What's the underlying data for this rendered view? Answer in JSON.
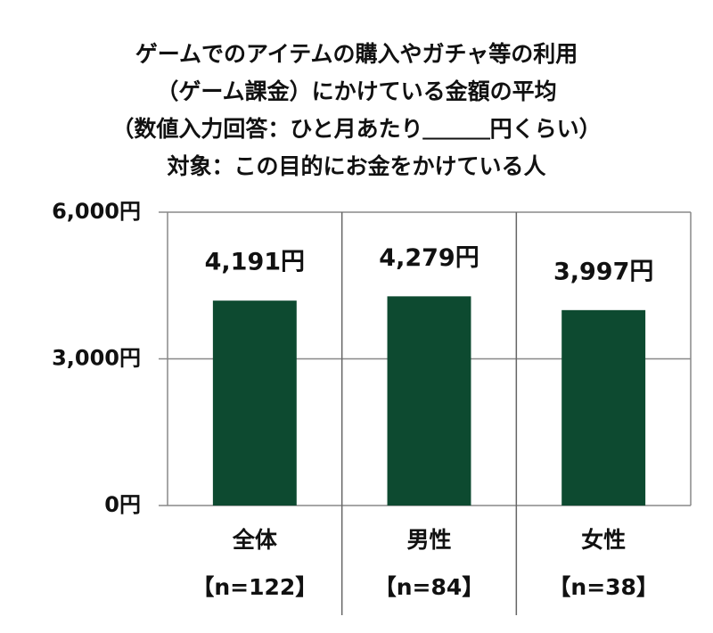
{
  "chart_data": {
    "type": "bar",
    "title": [
      "ゲームでのアイテムの購入やガチャ等の利用",
      "（ゲーム課金）にかけている金額の平均",
      "（数値入力回答：ひと月あたり＿＿＿円くらい）",
      "対象：この目的にお金をかけている人"
    ],
    "categories": [
      "全体",
      "男性",
      "女性"
    ],
    "category_sublabels": [
      "【n=122】",
      "【n=84】",
      "【n=38】"
    ],
    "values": [
      4191,
      4279,
      3997
    ],
    "value_labels": [
      "4,191円",
      "4,279円",
      "3,997円"
    ],
    "color": "#0d4a30",
    "ylim": [
      0,
      6000
    ],
    "yticks": [
      {
        "value": 0,
        "label": "0円"
      },
      {
        "value": 3000,
        "label": "3,000円"
      },
      {
        "value": 6000,
        "label": "6,000円"
      }
    ],
    "grid": true
  }
}
